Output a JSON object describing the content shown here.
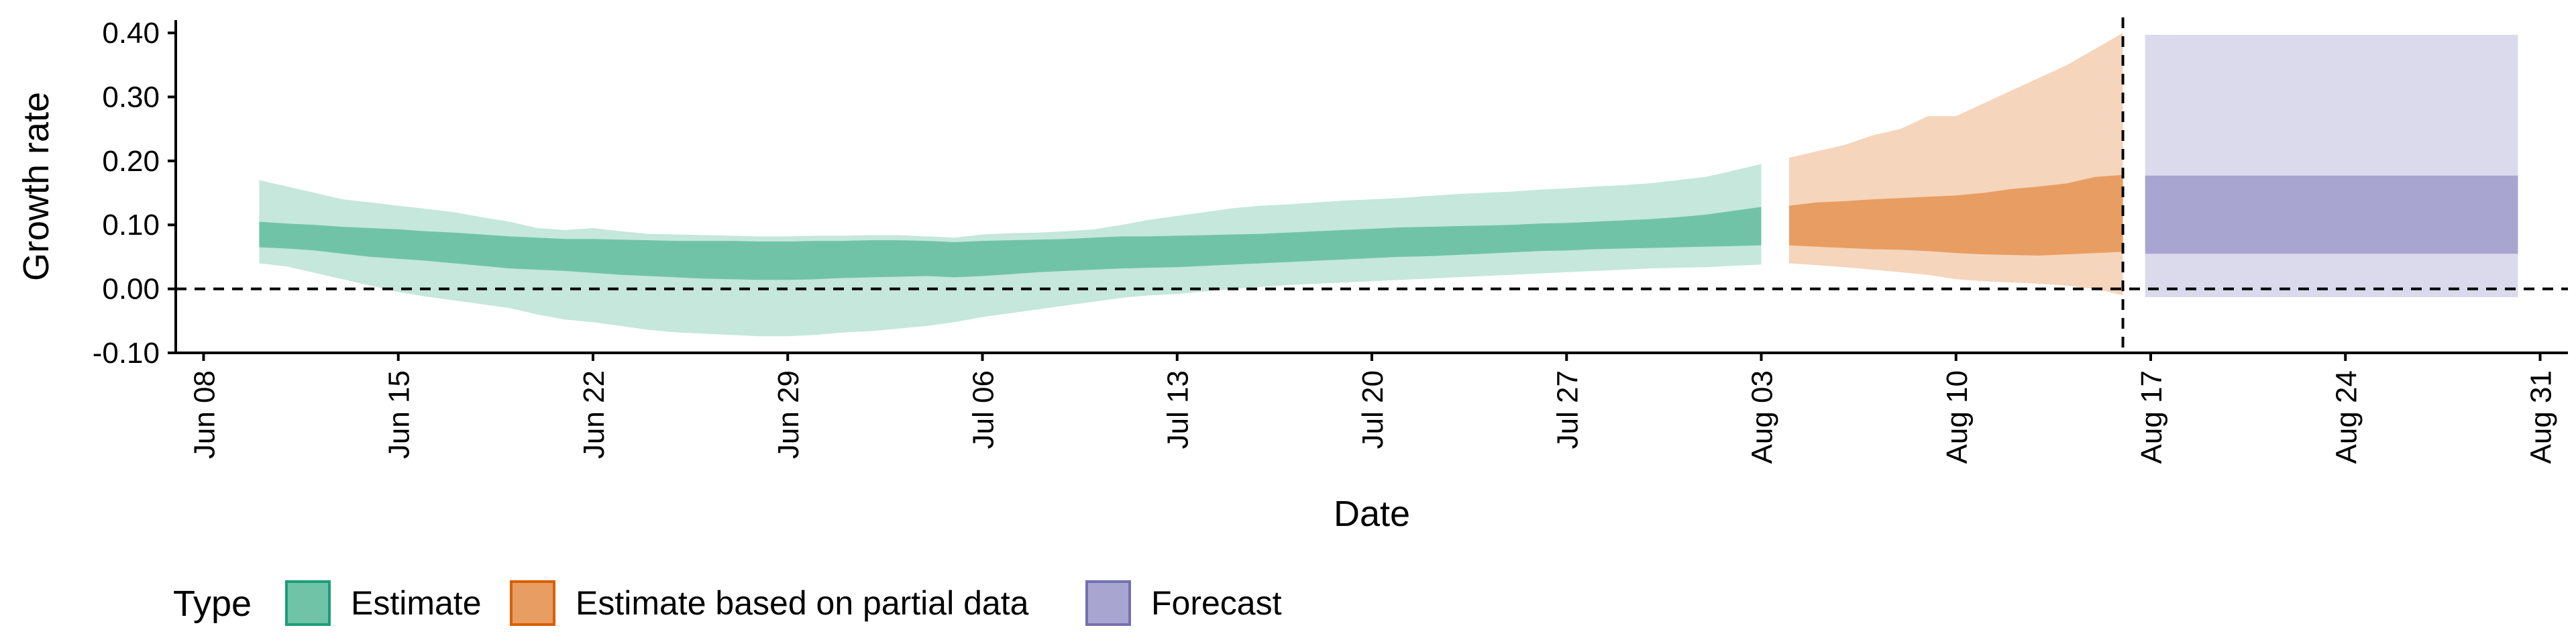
{
  "chart_data": {
    "type": "area",
    "xlabel": "Date",
    "ylabel": "Growth rate",
    "x_axis": {
      "type": "date",
      "range": [
        "2020-06-07",
        "2020-09-01"
      ],
      "ticks": [
        {
          "date": "2020-06-08",
          "label": "Jun 08"
        },
        {
          "date": "2020-06-15",
          "label": "Jun 15"
        },
        {
          "date": "2020-06-22",
          "label": "Jun 22"
        },
        {
          "date": "2020-06-29",
          "label": "Jun 29"
        },
        {
          "date": "2020-07-06",
          "label": "Jul 06"
        },
        {
          "date": "2020-07-13",
          "label": "Jul 13"
        },
        {
          "date": "2020-07-20",
          "label": "Jul 20"
        },
        {
          "date": "2020-07-27",
          "label": "Jul 27"
        },
        {
          "date": "2020-08-03",
          "label": "Aug 03"
        },
        {
          "date": "2020-08-10",
          "label": "Aug 10"
        },
        {
          "date": "2020-08-17",
          "label": "Aug 17"
        },
        {
          "date": "2020-08-24",
          "label": "Aug 24"
        },
        {
          "date": "2020-08-31",
          "label": "Aug 31"
        }
      ]
    },
    "y_axis": {
      "range": [
        -0.1,
        0.42
      ],
      "ticks": [
        {
          "value": -0.1,
          "label": "-0.10"
        },
        {
          "value": 0.0,
          "label": "0.00"
        },
        {
          "value": 0.1,
          "label": "0.10"
        },
        {
          "value": 0.2,
          "label": "0.20"
        },
        {
          "value": 0.3,
          "label": "0.30"
        },
        {
          "value": 0.4,
          "label": "0.40"
        }
      ]
    },
    "reference_lines": [
      {
        "axis": "y",
        "value": 0.0,
        "style": "dashed"
      },
      {
        "axis": "x",
        "date": "2020-08-16",
        "style": "dashed"
      }
    ],
    "grid": false,
    "legend": {
      "position": "bottom-left",
      "title": "Type",
      "items": [
        {
          "label": "Estimate",
          "fill": "#71c3a8",
          "border": "#1b9e77"
        },
        {
          "label": "Estimate based on partial data",
          "fill": "#e89d62",
          "border": "#d95f02"
        },
        {
          "label": "Forecast",
          "fill": "#a9a5d1",
          "border": "#7570b3"
        }
      ]
    },
    "series": [
      {
        "name": "Estimate",
        "color_outer": "#c5e7dc",
        "color_inner": "#71c3a8",
        "points": [
          {
            "date": "2020-06-10",
            "lo90": 0.04,
            "hi90": 0.17,
            "lo50": 0.065,
            "hi50": 0.105
          },
          {
            "date": "2020-06-11",
            "lo90": 0.035,
            "hi90": 0.16,
            "lo50": 0.063,
            "hi50": 0.102
          },
          {
            "date": "2020-06-12",
            "lo90": 0.025,
            "hi90": 0.15,
            "lo50": 0.06,
            "hi50": 0.1
          },
          {
            "date": "2020-06-13",
            "lo90": 0.015,
            "hi90": 0.14,
            "lo50": 0.055,
            "hi50": 0.097
          },
          {
            "date": "2020-06-14",
            "lo90": 0.005,
            "hi90": 0.135,
            "lo50": 0.05,
            "hi50": 0.095
          },
          {
            "date": "2020-06-15",
            "lo90": -0.005,
            "hi90": 0.13,
            "lo50": 0.047,
            "hi50": 0.093
          },
          {
            "date": "2020-06-16",
            "lo90": -0.012,
            "hi90": 0.125,
            "lo50": 0.044,
            "hi50": 0.09
          },
          {
            "date": "2020-06-17",
            "lo90": -0.018,
            "hi90": 0.12,
            "lo50": 0.04,
            "hi50": 0.088
          },
          {
            "date": "2020-06-18",
            "lo90": -0.024,
            "hi90": 0.112,
            "lo50": 0.036,
            "hi50": 0.085
          },
          {
            "date": "2020-06-19",
            "lo90": -0.03,
            "hi90": 0.105,
            "lo50": 0.032,
            "hi50": 0.082
          },
          {
            "date": "2020-06-20",
            "lo90": -0.04,
            "hi90": 0.095,
            "lo50": 0.03,
            "hi50": 0.08
          },
          {
            "date": "2020-06-21",
            "lo90": -0.048,
            "hi90": 0.092,
            "lo50": 0.028,
            "hi50": 0.078
          },
          {
            "date": "2020-06-22",
            "lo90": -0.052,
            "hi90": 0.095,
            "lo50": 0.025,
            "hi50": 0.078
          },
          {
            "date": "2020-06-23",
            "lo90": -0.058,
            "hi90": 0.09,
            "lo50": 0.022,
            "hi50": 0.077
          },
          {
            "date": "2020-06-24",
            "lo90": -0.064,
            "hi90": 0.086,
            "lo50": 0.02,
            "hi50": 0.076
          },
          {
            "date": "2020-06-25",
            "lo90": -0.068,
            "hi90": 0.085,
            "lo50": 0.018,
            "hi50": 0.075
          },
          {
            "date": "2020-06-26",
            "lo90": -0.07,
            "hi90": 0.084,
            "lo50": 0.016,
            "hi50": 0.075
          },
          {
            "date": "2020-06-27",
            "lo90": -0.072,
            "hi90": 0.083,
            "lo50": 0.015,
            "hi50": 0.075
          },
          {
            "date": "2020-06-28",
            "lo90": -0.074,
            "hi90": 0.082,
            "lo50": 0.014,
            "hi50": 0.074
          },
          {
            "date": "2020-06-29",
            "lo90": -0.074,
            "hi90": 0.082,
            "lo50": 0.014,
            "hi50": 0.074
          },
          {
            "date": "2020-06-30",
            "lo90": -0.072,
            "hi90": 0.083,
            "lo50": 0.015,
            "hi50": 0.075
          },
          {
            "date": "2020-07-01",
            "lo90": -0.068,
            "hi90": 0.083,
            "lo50": 0.017,
            "hi50": 0.075
          },
          {
            "date": "2020-07-02",
            "lo90": -0.066,
            "hi90": 0.084,
            "lo50": 0.018,
            "hi50": 0.076
          },
          {
            "date": "2020-07-03",
            "lo90": -0.062,
            "hi90": 0.084,
            "lo50": 0.019,
            "hi50": 0.076
          },
          {
            "date": "2020-07-04",
            "lo90": -0.058,
            "hi90": 0.082,
            "lo50": 0.02,
            "hi50": 0.075
          },
          {
            "date": "2020-07-05",
            "lo90": -0.052,
            "hi90": 0.08,
            "lo50": 0.018,
            "hi50": 0.073
          },
          {
            "date": "2020-07-06",
            "lo90": -0.044,
            "hi90": 0.085,
            "lo50": 0.02,
            "hi50": 0.075
          },
          {
            "date": "2020-07-07",
            "lo90": -0.038,
            "hi90": 0.087,
            "lo50": 0.023,
            "hi50": 0.076
          },
          {
            "date": "2020-07-08",
            "lo90": -0.032,
            "hi90": 0.088,
            "lo50": 0.026,
            "hi50": 0.077
          },
          {
            "date": "2020-07-09",
            "lo90": -0.026,
            "hi90": 0.09,
            "lo50": 0.028,
            "hi50": 0.078
          },
          {
            "date": "2020-07-10",
            "lo90": -0.02,
            "hi90": 0.093,
            "lo50": 0.03,
            "hi50": 0.08
          },
          {
            "date": "2020-07-11",
            "lo90": -0.014,
            "hi90": 0.1,
            "lo50": 0.032,
            "hi50": 0.082
          },
          {
            "date": "2020-07-12",
            "lo90": -0.01,
            "hi90": 0.108,
            "lo50": 0.033,
            "hi50": 0.082
          },
          {
            "date": "2020-07-13",
            "lo90": -0.008,
            "hi90": 0.114,
            "lo50": 0.034,
            "hi50": 0.083
          },
          {
            "date": "2020-07-14",
            "lo90": -0.004,
            "hi90": 0.12,
            "lo50": 0.036,
            "hi50": 0.084
          },
          {
            "date": "2020-07-15",
            "lo90": 0.0,
            "hi90": 0.126,
            "lo50": 0.038,
            "hi50": 0.085
          },
          {
            "date": "2020-07-16",
            "lo90": 0.003,
            "hi90": 0.13,
            "lo50": 0.04,
            "hi50": 0.086
          },
          {
            "date": "2020-07-17",
            "lo90": 0.006,
            "hi90": 0.132,
            "lo50": 0.042,
            "hi50": 0.088
          },
          {
            "date": "2020-07-18",
            "lo90": 0.008,
            "hi90": 0.135,
            "lo50": 0.044,
            "hi50": 0.09
          },
          {
            "date": "2020-07-19",
            "lo90": 0.01,
            "hi90": 0.138,
            "lo50": 0.046,
            "hi50": 0.092
          },
          {
            "date": "2020-07-20",
            "lo90": 0.012,
            "hi90": 0.14,
            "lo50": 0.048,
            "hi50": 0.094
          },
          {
            "date": "2020-07-21",
            "lo90": 0.014,
            "hi90": 0.142,
            "lo50": 0.05,
            "hi50": 0.096
          },
          {
            "date": "2020-07-22",
            "lo90": 0.016,
            "hi90": 0.145,
            "lo50": 0.051,
            "hi50": 0.097
          },
          {
            "date": "2020-07-23",
            "lo90": 0.018,
            "hi90": 0.148,
            "lo50": 0.053,
            "hi50": 0.098
          },
          {
            "date": "2020-07-24",
            "lo90": 0.02,
            "hi90": 0.15,
            "lo50": 0.055,
            "hi50": 0.099
          },
          {
            "date": "2020-07-25",
            "lo90": 0.022,
            "hi90": 0.152,
            "lo50": 0.057,
            "hi50": 0.1
          },
          {
            "date": "2020-07-26",
            "lo90": 0.024,
            "hi90": 0.155,
            "lo50": 0.059,
            "hi50": 0.102
          },
          {
            "date": "2020-07-27",
            "lo90": 0.026,
            "hi90": 0.157,
            "lo50": 0.06,
            "hi50": 0.103
          },
          {
            "date": "2020-07-28",
            "lo90": 0.028,
            "hi90": 0.16,
            "lo50": 0.062,
            "hi50": 0.105
          },
          {
            "date": "2020-07-29",
            "lo90": 0.03,
            "hi90": 0.162,
            "lo50": 0.063,
            "hi50": 0.107
          },
          {
            "date": "2020-07-30",
            "lo90": 0.032,
            "hi90": 0.165,
            "lo50": 0.064,
            "hi50": 0.109
          },
          {
            "date": "2020-07-31",
            "lo90": 0.033,
            "hi90": 0.17,
            "lo50": 0.065,
            "hi50": 0.112
          },
          {
            "date": "2020-08-01",
            "lo90": 0.034,
            "hi90": 0.175,
            "lo50": 0.066,
            "hi50": 0.116
          },
          {
            "date": "2020-08-02",
            "lo90": 0.036,
            "hi90": 0.185,
            "lo50": 0.067,
            "hi50": 0.122
          },
          {
            "date": "2020-08-03",
            "lo90": 0.038,
            "hi90": 0.195,
            "lo50": 0.068,
            "hi50": 0.128
          }
        ]
      },
      {
        "name": "Estimate based on partial data",
        "color_outer": "#f5d5bc",
        "color_inner": "#e89d62",
        "points": [
          {
            "date": "2020-08-04",
            "lo90": 0.04,
            "hi90": 0.205,
            "lo50": 0.068,
            "hi50": 0.13
          },
          {
            "date": "2020-08-05",
            "lo90": 0.037,
            "hi90": 0.215,
            "lo50": 0.066,
            "hi50": 0.135
          },
          {
            "date": "2020-08-06",
            "lo90": 0.034,
            "hi90": 0.225,
            "lo50": 0.064,
            "hi50": 0.137
          },
          {
            "date": "2020-08-07",
            "lo90": 0.03,
            "hi90": 0.24,
            "lo50": 0.062,
            "hi50": 0.14
          },
          {
            "date": "2020-08-08",
            "lo90": 0.026,
            "hi90": 0.25,
            "lo50": 0.061,
            "hi50": 0.142
          },
          {
            "date": "2020-08-09",
            "lo90": 0.022,
            "hi90": 0.27,
            "lo50": 0.059,
            "hi50": 0.144
          },
          {
            "date": "2020-08-10",
            "lo90": 0.015,
            "hi90": 0.27,
            "lo50": 0.056,
            "hi50": 0.146
          },
          {
            "date": "2020-08-11",
            "lo90": 0.012,
            "hi90": 0.29,
            "lo50": 0.054,
            "hi50": 0.15
          },
          {
            "date": "2020-08-12",
            "lo90": 0.01,
            "hi90": 0.31,
            "lo50": 0.053,
            "hi50": 0.156
          },
          {
            "date": "2020-08-13",
            "lo90": 0.008,
            "hi90": 0.33,
            "lo50": 0.052,
            "hi50": 0.16
          },
          {
            "date": "2020-08-14",
            "lo90": 0.005,
            "hi90": 0.35,
            "lo50": 0.054,
            "hi50": 0.165
          },
          {
            "date": "2020-08-15",
            "lo90": 0.0,
            "hi90": 0.375,
            "lo50": 0.056,
            "hi50": 0.175
          },
          {
            "date": "2020-08-16",
            "lo90": -0.01,
            "hi90": 0.4,
            "lo50": 0.058,
            "hi50": 0.178
          }
        ]
      },
      {
        "name": "Forecast",
        "color_outer": "#dbdaed",
        "color_inner": "#a9a5d1",
        "points": [
          {
            "date": "2020-08-17",
            "lo90": -0.013,
            "hi90": 0.397,
            "lo50": 0.055,
            "hi50": 0.177
          },
          {
            "date": "2020-08-30",
            "lo90": -0.013,
            "hi90": 0.397,
            "lo50": 0.055,
            "hi50": 0.177
          }
        ]
      }
    ]
  }
}
